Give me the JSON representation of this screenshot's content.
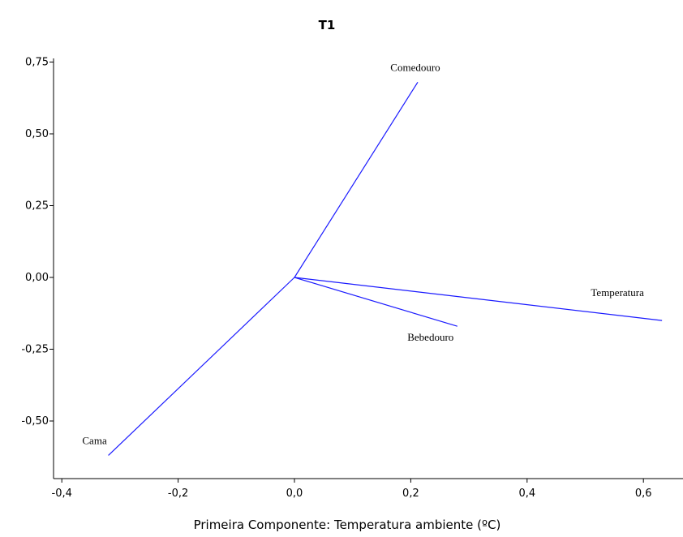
{
  "chart_data": {
    "type": "line",
    "title": "T1",
    "xlabel": "Primeira Componente: Temperatura ambiente (ºC)",
    "ylabel": "",
    "xlim": [
      -0.4,
      0.65
    ],
    "ylim": [
      -0.7,
      0.78
    ],
    "xticks": [
      -0.4,
      -0.2,
      0.0,
      0.2,
      0.4,
      0.6
    ],
    "xtick_labels": [
      "-0,4",
      "-0,2",
      "0,0",
      "0,2",
      "0,4",
      "0,6"
    ],
    "yticks": [
      -0.5,
      -0.25,
      0.0,
      0.25,
      0.5,
      0.75
    ],
    "ytick_labels": [
      "-0,50",
      "-0,25",
      "0,00",
      "0,25",
      "0,50",
      "0,75"
    ],
    "grid": false,
    "line_color": "#1a1aff",
    "series": [
      {
        "name": "Comedouro",
        "x": [
          0.0,
          0.212
        ],
        "y": [
          0.0,
          0.68
        ]
      },
      {
        "name": "Temperatura",
        "x": [
          0.0,
          0.632
        ],
        "y": [
          0.0,
          -0.15
        ]
      },
      {
        "name": "Bebedouro",
        "x": [
          0.0,
          0.28
        ],
        "y": [
          0.0,
          -0.17
        ]
      },
      {
        "name": "Cama",
        "x": [
          0.0,
          -0.32
        ],
        "y": [
          0.0,
          -0.62
        ]
      }
    ]
  }
}
